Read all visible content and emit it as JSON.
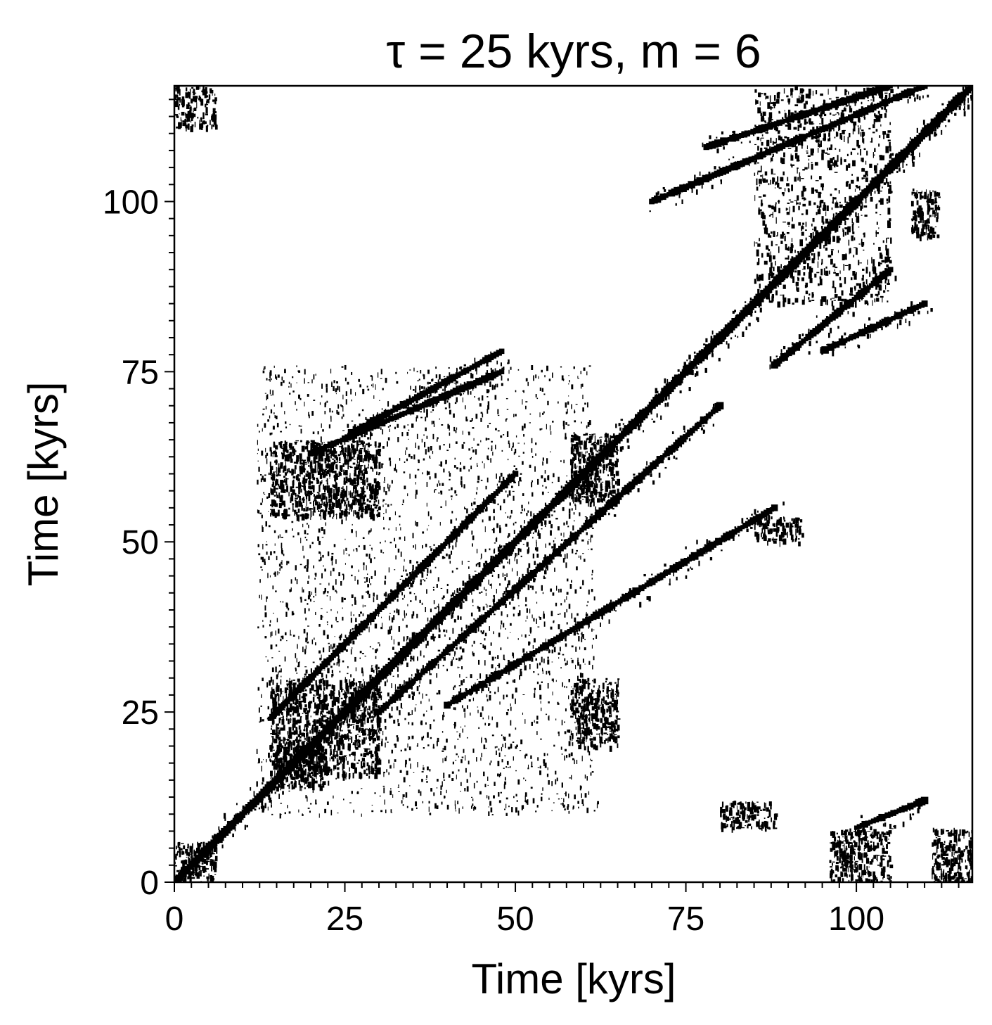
{
  "chart_data": {
    "type": "heatmap",
    "title": "τ = 25 kyrs, m = 6",
    "xlabel": "Time [kyrs]",
    "ylabel": "Time [kyrs]",
    "xlim": [
      0,
      117
    ],
    "ylim": [
      0,
      117
    ],
    "x_ticks": [
      0,
      25,
      50,
      75,
      100
    ],
    "y_ticks": [
      0,
      25,
      50,
      75,
      100
    ],
    "x_tick_labels": [
      "0",
      "25",
      "50",
      "75",
      "100"
    ],
    "y_tick_labels": [
      "0",
      "25",
      "50",
      "75",
      "100"
    ],
    "minor_tick_step": 2.5,
    "grid": false,
    "legend": "none",
    "colors": {
      "recurrence": "#000000",
      "background": "#ffffff"
    },
    "recurrence_lines": [
      {
        "from": [
          0,
          0
        ],
        "to": [
          117,
          117
        ],
        "note": "line of identity"
      },
      {
        "from": [
          14,
          24
        ],
        "to": [
          50,
          60
        ]
      },
      {
        "from": [
          26,
          66
        ],
        "to": [
          48,
          78
        ]
      },
      {
        "from": [
          20,
          63
        ],
        "to": [
          48,
          75
        ]
      },
      {
        "from": [
          30,
          25
        ],
        "to": [
          80,
          70
        ]
      },
      {
        "from": [
          40,
          26
        ],
        "to": [
          88,
          55
        ]
      },
      {
        "from": [
          70,
          100
        ],
        "to": [
          110,
          117
        ]
      },
      {
        "from": [
          78,
          108
        ],
        "to": [
          105,
          117
        ]
      },
      {
        "from": [
          88,
          76
        ],
        "to": [
          105,
          90
        ]
      },
      {
        "from": [
          95,
          78
        ],
        "to": [
          110,
          85
        ]
      },
      {
        "from": [
          100,
          8
        ],
        "to": [
          110,
          12
        ]
      }
    ],
    "recurrence_blocks": [
      {
        "x": [
          0,
          6
        ],
        "y": [
          0,
          6
        ]
      },
      {
        "x": [
          111,
          117
        ],
        "y": [
          0,
          8
        ]
      },
      {
        "x": [
          0,
          6
        ],
        "y": [
          111,
          117
        ]
      },
      {
        "x": [
          14,
          22
        ],
        "y": [
          14,
          20
        ]
      },
      {
        "x": [
          14,
          30
        ],
        "y": [
          16,
          30
        ]
      },
      {
        "x": [
          14,
          30
        ],
        "y": [
          54,
          65
        ]
      },
      {
        "x": [
          58,
          65
        ],
        "y": [
          56,
          66
        ]
      },
      {
        "x": [
          58,
          65
        ],
        "y": [
          20,
          30
        ]
      },
      {
        "x": [
          85,
          105
        ],
        "y": [
          85,
          117
        ]
      },
      {
        "x": [
          108,
          112
        ],
        "y": [
          95,
          102
        ]
      },
      {
        "x": [
          85,
          92
        ],
        "y": [
          50,
          54
        ]
      },
      {
        "x": [
          80,
          88
        ],
        "y": [
          8,
          12
        ]
      },
      {
        "x": [
          96,
          105
        ],
        "y": [
          0,
          8
        ]
      }
    ]
  }
}
